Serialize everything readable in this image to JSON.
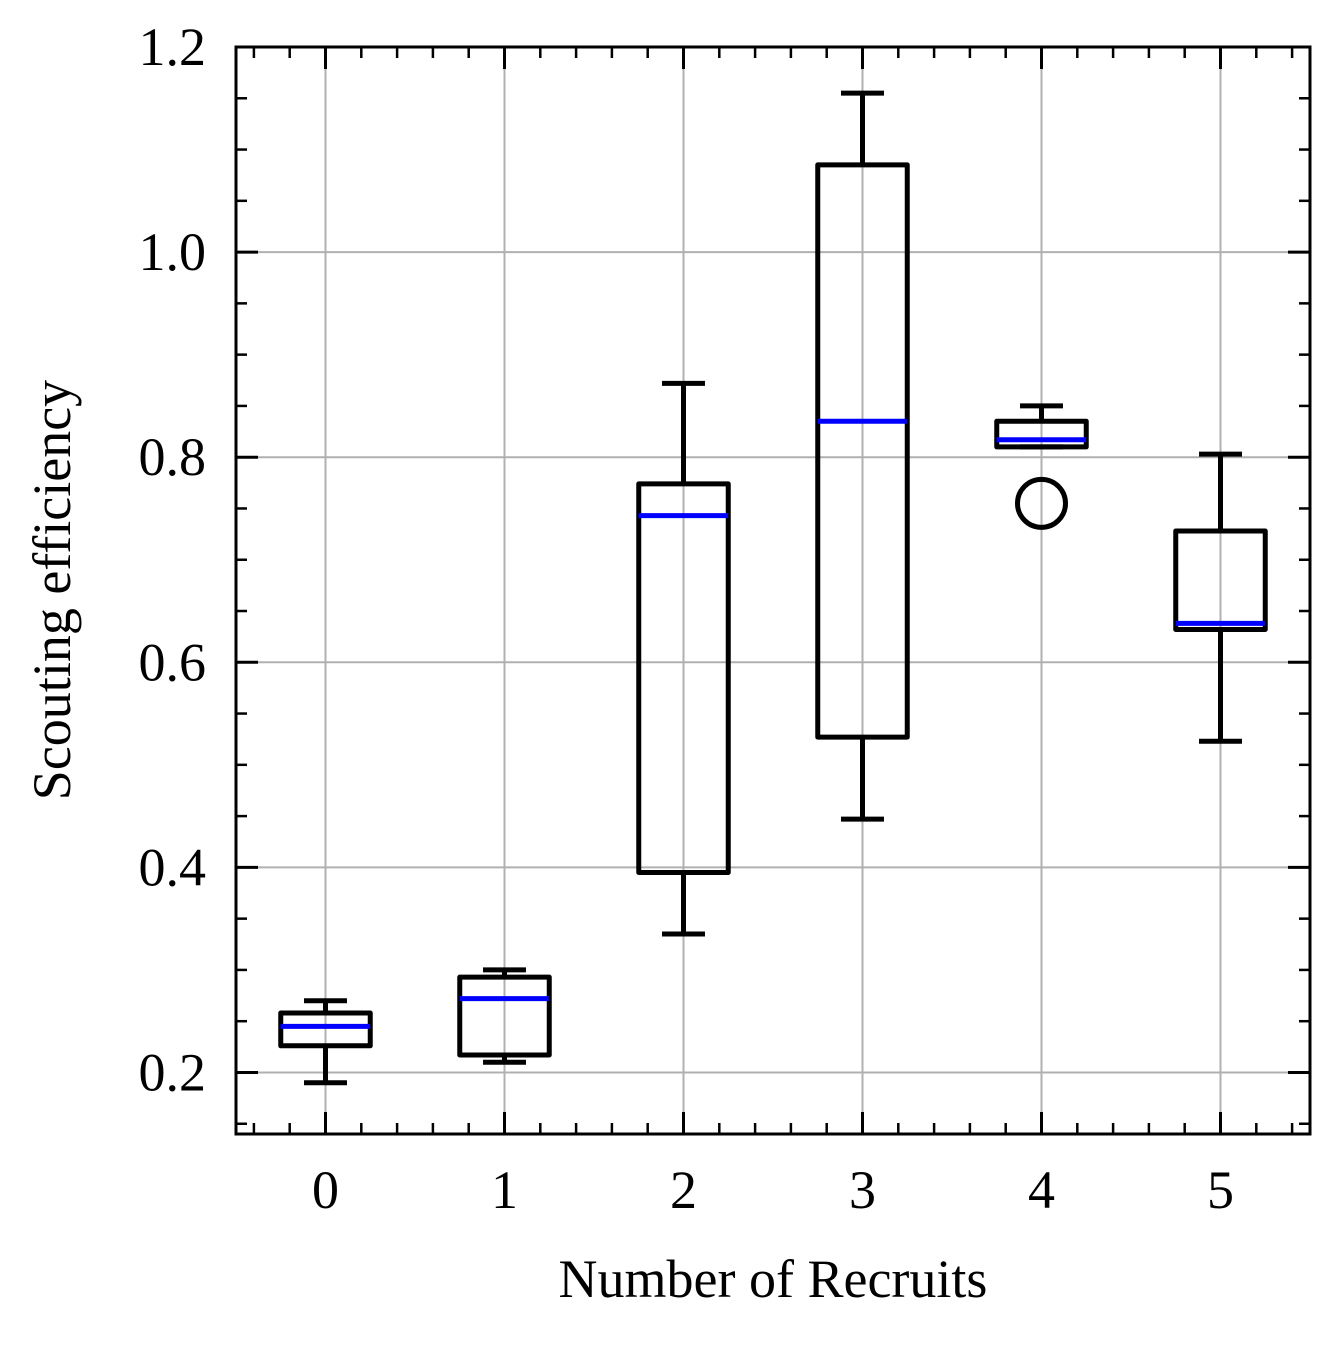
{
  "chart_data": {
    "type": "box",
    "xlabel": "Number of Recruits",
    "ylabel": "Scouting efficiency",
    "categories": [
      "0",
      "1",
      "2",
      "3",
      "4",
      "5"
    ],
    "ylim": [
      0.14,
      1.2
    ],
    "xlim": [
      -0.5,
      5.5
    ],
    "yticks": [
      0.2,
      0.4,
      0.6,
      0.8,
      1.0,
      1.2
    ],
    "ytick_labels": [
      "0.2",
      "0.4",
      "0.6",
      "0.8",
      "1.0",
      "1.2"
    ],
    "grid": true,
    "colors": {
      "box": "#000000",
      "median": "#0000ff",
      "grid": "#b0b0b0"
    },
    "boxes": [
      {
        "label": "0",
        "whisker_low": 0.19,
        "q1": 0.226,
        "median": 0.245,
        "q3": 0.258,
        "whisker_high": 0.27,
        "outliers": []
      },
      {
        "label": "1",
        "whisker_low": 0.21,
        "q1": 0.217,
        "median": 0.272,
        "q3": 0.293,
        "whisker_high": 0.3,
        "outliers": []
      },
      {
        "label": "2",
        "whisker_low": 0.335,
        "q1": 0.395,
        "median": 0.743,
        "q3": 0.774,
        "whisker_high": 0.872,
        "outliers": []
      },
      {
        "label": "3",
        "whisker_low": 0.447,
        "q1": 0.527,
        "median": 0.835,
        "q3": 1.085,
        "whisker_high": 1.155,
        "outliers": []
      },
      {
        "label": "4",
        "whisker_low": 0.81,
        "q1": 0.81,
        "median": 0.817,
        "q3": 0.835,
        "whisker_high": 0.85,
        "outliers": [
          0.755
        ]
      },
      {
        "label": "5",
        "whisker_low": 0.523,
        "q1": 0.632,
        "median": 0.638,
        "q3": 0.728,
        "whisker_high": 0.803,
        "outliers": []
      }
    ]
  }
}
